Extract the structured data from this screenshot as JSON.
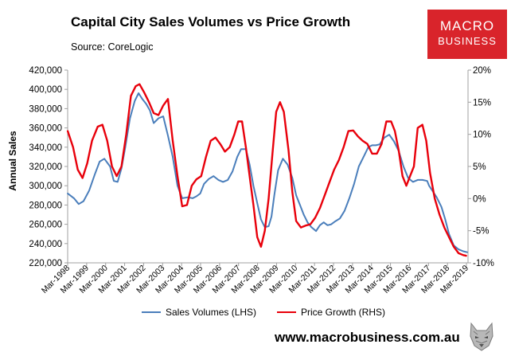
{
  "header": {
    "title": "Capital City Sales Volumes vs Price Growth",
    "subtitle": "Source: CoreLogic"
  },
  "logo": {
    "line1": "MACRO",
    "line2": "BUSINESS",
    "color": "#d9242b"
  },
  "footer": {
    "website": "www.macrobusiness.com.au"
  },
  "chart_data": {
    "type": "line",
    "title": "Capital City Sales Volumes vs Price Growth",
    "subtitle": "Source: CoreLogic",
    "ylabel_left": "Annual Sales",
    "ylim_left": [
      220000,
      420000
    ],
    "yticks_left": [
      "220,000",
      "240,000",
      "260,000",
      "280,000",
      "300,000",
      "320,000",
      "340,000",
      "360,000",
      "380,000",
      "400,000",
      "420,000"
    ],
    "ylim_right": [
      -10,
      20
    ],
    "yticks_right": [
      "-10%",
      "-5%",
      "0%",
      "5%",
      "10%",
      "15%",
      "20%"
    ],
    "xlim": [
      1998.167,
      2019.25
    ],
    "xticks": [
      "Mar-1998",
      "Mar-1999",
      "Mar-2000",
      "Mar-2001",
      "Mar-2002",
      "Mar-2003",
      "Mar-2004",
      "Mar-2005",
      "Mar-2006",
      "Mar-2007",
      "Mar-2008",
      "Mar-2009",
      "Mar-2010",
      "Mar-2011",
      "Mar-2012",
      "Mar-2013",
      "Mar-2014",
      "Mar-2015",
      "Mar-2016",
      "Mar-2017",
      "Mar-2018",
      "Mar-2019"
    ],
    "grid": false,
    "legend_position": "bottom",
    "series": [
      {
        "name": "Sales Volumes (LHS)",
        "axis": "left",
        "color": "#4a7ebb",
        "x": [
          1998.17,
          1998.5,
          1998.75,
          1999.0,
          1999.3,
          1999.6,
          1999.85,
          2000.1,
          2000.4,
          2000.6,
          2000.8,
          2001.0,
          2001.2,
          2001.45,
          2001.7,
          2001.9,
          2002.1,
          2002.3,
          2002.5,
          2002.7,
          2002.95,
          2003.2,
          2003.45,
          2003.7,
          2003.95,
          2004.2,
          2004.5,
          2004.75,
          2004.95,
          2005.15,
          2005.35,
          2005.6,
          2005.85,
          2006.1,
          2006.35,
          2006.6,
          2006.85,
          2007.1,
          2007.3,
          2007.55,
          2007.75,
          2007.95,
          2008.15,
          2008.35,
          2008.55,
          2008.75,
          2008.9,
          2009.05,
          2009.25,
          2009.5,
          2009.75,
          2010.0,
          2010.2,
          2010.4,
          2010.6,
          2010.8,
          2011.0,
          2011.25,
          2011.45,
          2011.65,
          2011.85,
          2012.05,
          2012.25,
          2012.5,
          2012.75,
          2013.0,
          2013.25,
          2013.5,
          2013.75,
          2014.0,
          2014.2,
          2014.4,
          2014.6,
          2014.85,
          2015.1,
          2015.35,
          2015.6,
          2015.85,
          2016.1,
          2016.35,
          2016.6,
          2016.85,
          2017.1,
          2017.2,
          2017.4,
          2017.6,
          2017.85,
          2018.05,
          2018.25,
          2018.5,
          2018.75,
          2019.0,
          2019.2
        ],
        "values": [
          292000,
          287000,
          281000,
          284000,
          295000,
          312000,
          325000,
          328000,
          320000,
          305000,
          304000,
          318000,
          340000,
          370000,
          388000,
          396000,
          390000,
          385000,
          378000,
          365000,
          370000,
          372000,
          352000,
          330000,
          300000,
          287000,
          288000,
          287000,
          289000,
          292000,
          302000,
          307000,
          310000,
          306000,
          304000,
          306000,
          315000,
          330000,
          338000,
          338000,
          322000,
          300000,
          282000,
          265000,
          257000,
          258000,
          268000,
          290000,
          316000,
          328000,
          322000,
          308000,
          290000,
          280000,
          270000,
          262000,
          257000,
          253000,
          259000,
          262000,
          259000,
          260000,
          263000,
          266000,
          274000,
          287000,
          302000,
          320000,
          330000,
          340000,
          342000,
          342000,
          343000,
          350000,
          353000,
          346000,
          336000,
          320000,
          308000,
          304000,
          306000,
          306000,
          305000,
          300000,
          294000,
          288000,
          278000,
          265000,
          250000,
          238000,
          234000,
          232000,
          231000
        ]
      },
      {
        "name": "Price Growth (RHS)",
        "axis": "right",
        "color": "#e8000b",
        "x": [
          1998.17,
          1998.45,
          1998.7,
          1998.95,
          1999.2,
          1999.45,
          1999.75,
          2000.0,
          2000.25,
          2000.5,
          2000.75,
          2001.0,
          2001.25,
          2001.5,
          2001.75,
          2001.95,
          2002.2,
          2002.45,
          2002.7,
          2002.95,
          2003.2,
          2003.45,
          2003.7,
          2003.95,
          2004.2,
          2004.45,
          2004.7,
          2004.95,
          2005.2,
          2005.45,
          2005.7,
          2005.95,
          2006.2,
          2006.45,
          2006.7,
          2006.95,
          2007.15,
          2007.35,
          2007.55,
          2007.75,
          2007.95,
          2008.15,
          2008.35,
          2008.55,
          2008.75,
          2008.95,
          2009.15,
          2009.35,
          2009.55,
          2009.8,
          2010.0,
          2010.2,
          2010.45,
          2010.7,
          2010.95,
          2011.2,
          2011.45,
          2011.7,
          2011.95,
          2012.2,
          2012.45,
          2012.7,
          2012.95,
          2013.2,
          2013.45,
          2013.7,
          2013.95,
          2014.2,
          2014.45,
          2014.7,
          2014.95,
          2015.2,
          2015.4,
          2015.6,
          2015.8,
          2016.0,
          2016.2,
          2016.4,
          2016.6,
          2016.85,
          2017.05,
          2017.25,
          2017.5,
          2017.75,
          2018.0,
          2018.25,
          2018.5,
          2018.75,
          2019.0,
          2019.15
        ],
        "values": [
          10.5,
          8.0,
          4.5,
          3.2,
          5.5,
          9.0,
          11.2,
          11.5,
          9.0,
          5.0,
          3.5,
          5.0,
          10.0,
          16.0,
          17.5,
          17.8,
          16.5,
          15.0,
          13.3,
          13.0,
          14.5,
          15.5,
          9.0,
          3.5,
          -1.2,
          -1.0,
          2.0,
          3.0,
          3.5,
          6.5,
          9.0,
          9.5,
          8.5,
          7.3,
          8.0,
          10.0,
          12.0,
          12.0,
          8.0,
          3.5,
          -1.0,
          -6.0,
          -7.5,
          -5.0,
          0.0,
          7.0,
          13.5,
          15.0,
          13.5,
          7.5,
          1.0,
          -3.5,
          -4.5,
          -4.2,
          -4.0,
          -3.0,
          -1.5,
          0.5,
          2.5,
          4.5,
          6.0,
          8.0,
          10.5,
          10.6,
          9.7,
          9.0,
          8.5,
          7.0,
          7.0,
          8.5,
          12.0,
          12.0,
          10.5,
          7.5,
          3.5,
          2.0,
          3.5,
          5.0,
          11.0,
          11.5,
          9.0,
          4.0,
          0.0,
          -2.5,
          -4.5,
          -6.0,
          -7.5,
          -8.5,
          -8.8,
          -8.9
        ]
      }
    ],
    "legend": [
      "Sales Volumes (LHS)",
      "Price Growth (RHS)"
    ]
  }
}
